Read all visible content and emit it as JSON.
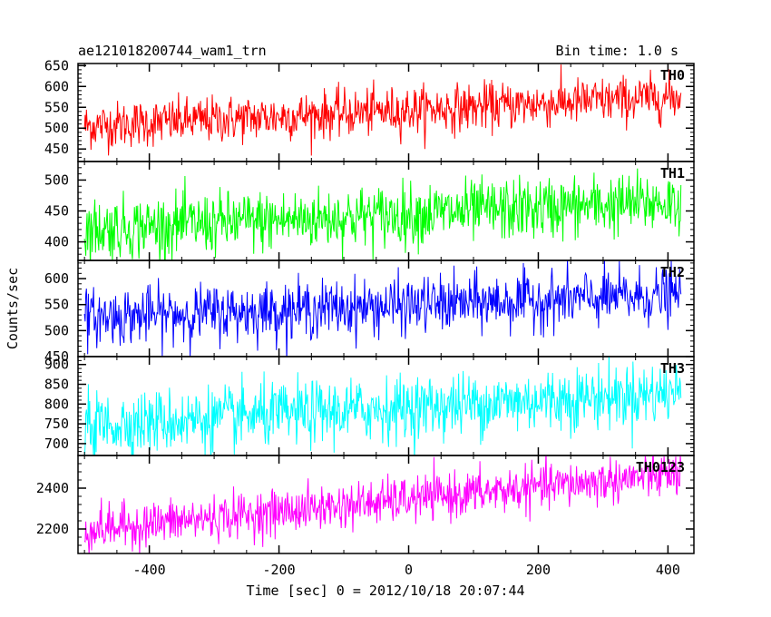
{
  "header": {
    "title": "ae121018200744_wam1_trn",
    "bin_time": "Bin time: 1.0 s"
  },
  "axes": {
    "ylabel": "Counts/sec",
    "xlabel": "Time [sec] 0 = 2012/10/18 20:07:44",
    "x_ticks": [
      -400,
      -200,
      0,
      200,
      400
    ],
    "xlim": [
      -510,
      440
    ]
  },
  "chart_data": {
    "type": "line",
    "x_range": [
      -500,
      420
    ],
    "bin_time_s": 1.0,
    "series": [
      {
        "name": "TH0",
        "color": "#ff0000",
        "ylim": [
          420,
          655
        ],
        "y_ticks": [
          450,
          500,
          550,
          600,
          650
        ],
        "trend": [
          505,
          575
        ],
        "noise": 28
      },
      {
        "name": "TH1",
        "color": "#00ff00",
        "ylim": [
          370,
          530
        ],
        "y_ticks": [
          400,
          450,
          500
        ],
        "trend": [
          420,
          465
        ],
        "noise": 25
      },
      {
        "name": "TH2",
        "color": "#0000ff",
        "ylim": [
          450,
          635
        ],
        "y_ticks": [
          450,
          500,
          550,
          600
        ],
        "trend": [
          525,
          568
        ],
        "noise": 27
      },
      {
        "name": "TH3",
        "color": "#00ffff",
        "ylim": [
          670,
          920
        ],
        "y_ticks": [
          700,
          750,
          800,
          850,
          900
        ],
        "trend": [
          745,
          830
        ],
        "noise": 40
      },
      {
        "name": "TH0123",
        "color": "#ff00ff",
        "ylim": [
          2080,
          2560
        ],
        "y_ticks": [
          2200,
          2400
        ],
        "trend": [
          2195,
          2470
        ],
        "noise": 55
      }
    ]
  }
}
